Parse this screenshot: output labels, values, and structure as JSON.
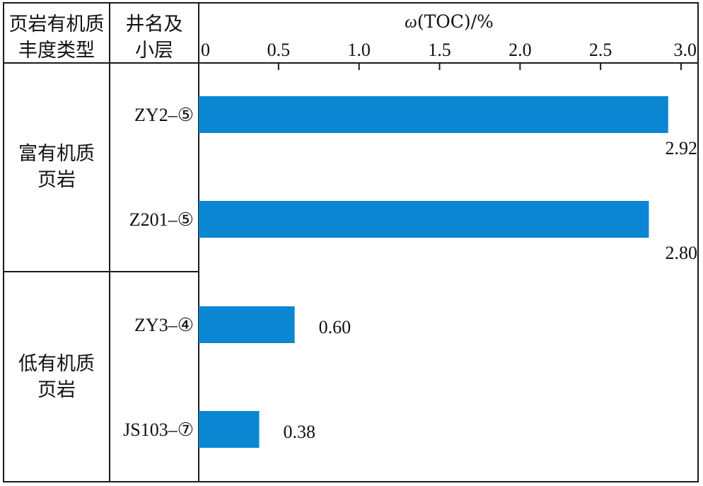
{
  "header": {
    "col1": "页岩有机质\n丰度类型",
    "col2": "井名及\n小层",
    "axis_symbol": "ω",
    "axis_title": "(TOC)/%"
  },
  "groups": [
    {
      "label": "富有机质\n页岩"
    },
    {
      "label": "低有机质\n页岩"
    }
  ],
  "chart_data": {
    "type": "bar",
    "orientation": "horizontal",
    "categories": [
      "ZY2–⑤",
      "Z201–⑤",
      "ZY3–④",
      "JS103–⑦"
    ],
    "values": [
      2.92,
      2.8,
      0.6,
      0.38
    ],
    "value_labels": [
      "2.92",
      "2.80",
      "0.60",
      "0.38"
    ],
    "xlabel": "ω(TOC)/%",
    "xlim": [
      0,
      3.0
    ],
    "xticks": [
      0,
      0.5,
      1.0,
      1.5,
      2.0,
      2.5,
      3.0
    ],
    "xtick_labels": [
      "0",
      "0.5",
      "1.0",
      "1.5",
      "2.0",
      "2.5",
      "3.0"
    ],
    "bar_color": "#0A86D2",
    "grid": false
  }
}
